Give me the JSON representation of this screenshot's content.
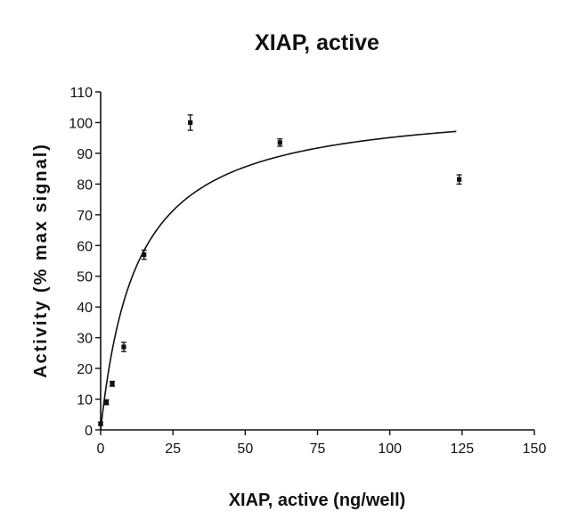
{
  "chart_data": {
    "type": "scatter",
    "title": "XIAP, active",
    "xlabel": "XIAP, active (ng/well)",
    "ylabel": "Activity (% max signal)",
    "xlim": [
      0,
      150
    ],
    "ylim": [
      0,
      110
    ],
    "x_ticks": [
      "0",
      "25",
      "50",
      "75",
      "100",
      "125",
      "150"
    ],
    "y_ticks": [
      "0",
      "10",
      "20",
      "30",
      "40",
      "50",
      "60",
      "70",
      "80",
      "90",
      "100",
      "110"
    ],
    "grid": false,
    "legend": "none",
    "series": [
      {
        "points": [
          {
            "x": 0,
            "y": 2,
            "err": 0.5
          },
          {
            "x": 2,
            "y": 9,
            "err": 0.8
          },
          {
            "x": 4,
            "y": 15,
            "err": 0.8
          },
          {
            "x": 8,
            "y": 27,
            "err": 1.5
          },
          {
            "x": 15,
            "y": 57,
            "err": 1.5
          },
          {
            "x": 31,
            "y": 100,
            "err": 2.5
          },
          {
            "x": 62,
            "y": 93.5,
            "err": 1.2
          },
          {
            "x": 124,
            "y": 81.5,
            "err": 1.5
          }
        ]
      }
    ],
    "fit_curve": {
      "type": "hyperbolic",
      "vmax": 107,
      "k": 12.5,
      "x_range": [
        0,
        123
      ]
    }
  }
}
